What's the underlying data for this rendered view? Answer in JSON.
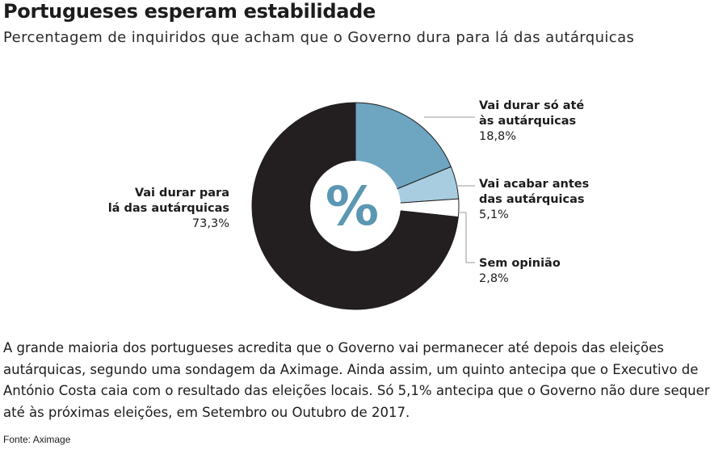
{
  "title": "Portugueses esperam estabilidade",
  "subtitle": "Percentagem de inquiridos que acham que o Governo dura para lá das autárquicas",
  "chart_data": {
    "type": "pie",
    "style": "donut",
    "center_symbol": "%",
    "slices": [
      {
        "label_lines": [
          "Vai durar só até",
          "às autárquicas"
        ],
        "value": 18.8,
        "value_text": "18,8%",
        "color": "#6ea5c1"
      },
      {
        "label_lines": [
          "Vai acabar antes",
          "das autárquicas"
        ],
        "value": 5.1,
        "value_text": "5,1%",
        "color": "#a9cde0"
      },
      {
        "label_lines": [
          "Sem opinião"
        ],
        "value": 2.8,
        "value_text": "2,8%",
        "color": "#ffffff"
      },
      {
        "label_lines": [
          "Vai durar para",
          "lá das autárquicas"
        ],
        "value": 73.3,
        "value_text": "73,3%",
        "color": "#231f20"
      }
    ]
  },
  "body": "A grande maioria dos portugueses acredita que o Governo vai permanecer até depois das eleições autárquicas, segundo uma sondagem da Aximage. Ainda assim, um quinto antecipa que o Executivo de António Costa caia com o resultado das eleições locais. Só 5,1% antecipa que o Governo não dure sequer até às próximas eleições, em Setembro ou Outubro de 2017.",
  "source": "Fonte: Aximage"
}
